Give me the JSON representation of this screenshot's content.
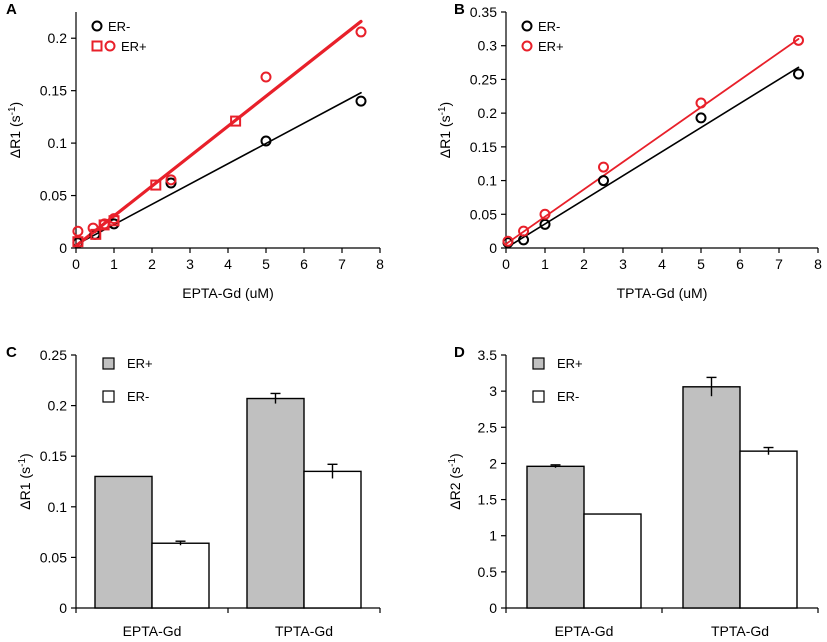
{
  "chart_data": [
    {
      "id": "A",
      "type": "scatter",
      "panel_label": "A",
      "xlabel": "EPTA-Gd (uM)",
      "ylabel_main": "ΔR1 (s",
      "ylabel_sup": "-1",
      "ylabel_end": ")",
      "xlim": [
        0,
        8
      ],
      "ylim": [
        0,
        0.225
      ],
      "xticks": [
        0,
        1,
        2,
        3,
        4,
        5,
        6,
        7,
        8
      ],
      "yticks": [
        0,
        0.05,
        0.1,
        0.15,
        0.2
      ],
      "ytick_labels": [
        "0",
        "0.05",
        "0.1",
        "0.15",
        "0.2"
      ],
      "legend": [
        {
          "label": "ER-",
          "markers": [
            "circle"
          ],
          "color": "#000000"
        },
        {
          "label": "ER+",
          "markers": [
            "square",
            "circle"
          ],
          "color": "#e8202a"
        }
      ],
      "series": [
        {
          "name": "ER-",
          "color": "#000000",
          "marker": "circle",
          "line_width": 1.6,
          "x": [
            0.05,
            0.5,
            1.0,
            2.5,
            5.0,
            7.5
          ],
          "y": [
            0.005,
            0.013,
            0.023,
            0.062,
            0.102,
            0.14
          ],
          "fit": [
            [
              0,
              0.003
            ],
            [
              7.5,
              0.148
            ]
          ]
        },
        {
          "name": "ER+",
          "color": "#e8202a",
          "marker": "square",
          "line_width": 3.2,
          "x": [
            0.05,
            0.52,
            0.74,
            1.0,
            2.1,
            4.2
          ],
          "y": [
            0.006,
            0.013,
            0.022,
            0.026,
            0.06,
            0.121
          ],
          "fit": [
            [
              0,
              0.002
            ],
            [
              7.5,
              0.216
            ]
          ]
        },
        {
          "name": "ER+",
          "color": "#e8202a",
          "marker": "circle",
          "x": [
            0.05,
            0.45,
            0.75,
            1.0,
            2.5,
            5.0,
            7.5
          ],
          "y": [
            0.016,
            0.019,
            0.023,
            0.028,
            0.065,
            0.163,
            0.206
          ]
        }
      ]
    },
    {
      "id": "B",
      "type": "scatter",
      "panel_label": "B",
      "xlabel": "TPTA-Gd (uM)",
      "ylabel_main": "ΔR1 (s",
      "ylabel_sup": "-1",
      "ylabel_end": ")",
      "xlim": [
        0,
        8
      ],
      "ylim": [
        0,
        0.35
      ],
      "xticks": [
        0,
        1,
        2,
        3,
        4,
        5,
        6,
        7,
        8
      ],
      "yticks": [
        0,
        0.05,
        0.1,
        0.15,
        0.2,
        0.25,
        0.3,
        0.35
      ],
      "ytick_labels": [
        "0",
        "0.05",
        "0.1",
        "0.15",
        "0.2",
        "0.25",
        "0.3",
        "0.35"
      ],
      "legend": [
        {
          "label": "ER-",
          "markers": [
            "circle"
          ],
          "color": "#000000"
        },
        {
          "label": "ER+",
          "markers": [
            "circle"
          ],
          "color": "#e8202a"
        }
      ],
      "series": [
        {
          "name": "ER-",
          "color": "#000000",
          "marker": "circle",
          "line_width": 1.6,
          "x": [
            0.05,
            0.45,
            1.0,
            2.5,
            5.0,
            7.5
          ],
          "y": [
            0.008,
            0.012,
            0.035,
            0.1,
            0.193,
            0.258
          ],
          "fit": [
            [
              0,
              0.0
            ],
            [
              7.5,
              0.268
            ]
          ]
        },
        {
          "name": "ER+",
          "color": "#e8202a",
          "marker": "circle",
          "line_width": 1.8,
          "x": [
            0.05,
            0.45,
            1.0,
            2.5,
            5.0,
            7.5
          ],
          "y": [
            0.01,
            0.025,
            0.05,
            0.12,
            0.215,
            0.308
          ],
          "fit": [
            [
              0,
              0.006
            ],
            [
              7.5,
              0.31
            ]
          ]
        }
      ]
    },
    {
      "id": "C",
      "type": "bar",
      "panel_label": "C",
      "categories": [
        "EPTA-Gd",
        "TPTA-Gd"
      ],
      "ylabel_main": "ΔR1 (s",
      "ylabel_sup": "-1",
      "ylabel_end": ")",
      "ylim": [
        0,
        0.25
      ],
      "yticks": [
        0,
        0.05,
        0.1,
        0.15,
        0.2,
        0.25
      ],
      "ytick_labels": [
        "0",
        "0.05",
        "0.1",
        "0.15",
        "0.2",
        "0.25"
      ],
      "legend": [
        {
          "label": "ER+",
          "fill": "#c0c0c0"
        },
        {
          "label": "ER-",
          "fill": "#ffffff"
        }
      ],
      "series": [
        {
          "name": "ER+",
          "fill": "#c0c0c0",
          "values": [
            0.13,
            0.207
          ],
          "errors": [
            0.0,
            0.005
          ]
        },
        {
          "name": "ER-",
          "fill": "#ffffff",
          "values": [
            0.064,
            0.135
          ],
          "errors": [
            0.002,
            0.007
          ]
        }
      ]
    },
    {
      "id": "D",
      "type": "bar",
      "panel_label": "D",
      "categories": [
        "EPTA-Gd",
        "TPTA-Gd"
      ],
      "ylabel_main": "ΔR2 (s",
      "ylabel_sup": "-1",
      "ylabel_end": ")",
      "ylim": [
        0,
        3.5
      ],
      "yticks": [
        0,
        0.5,
        1,
        1.5,
        2,
        2.5,
        3,
        3.5
      ],
      "ytick_labels": [
        "0",
        "0.5",
        "1",
        "1.5",
        "2",
        "2.5",
        "3",
        "3.5"
      ],
      "legend": [
        {
          "label": "ER+",
          "fill": "#c0c0c0"
        },
        {
          "label": "ER-",
          "fill": "#ffffff"
        }
      ],
      "series": [
        {
          "name": "ER+",
          "fill": "#c0c0c0",
          "values": [
            1.96,
            3.06
          ],
          "errors": [
            0.02,
            0.13
          ]
        },
        {
          "name": "ER-",
          "fill": "#ffffff",
          "values": [
            1.3,
            2.17
          ],
          "errors": [
            0.0,
            0.05
          ]
        }
      ]
    }
  ]
}
